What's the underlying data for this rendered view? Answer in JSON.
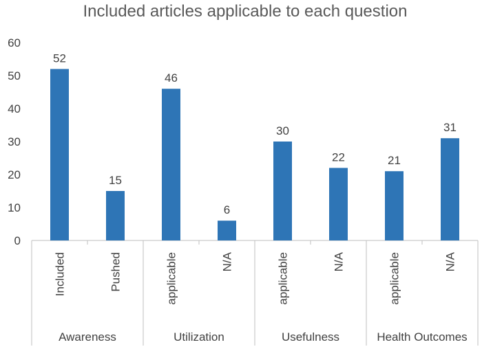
{
  "chart_data": {
    "type": "bar",
    "title": "Included articles applicable to each question",
    "xlabel": "",
    "ylabel": "",
    "ylim": [
      0,
      60
    ],
    "yticks": [
      0,
      10,
      20,
      30,
      40,
      50,
      60
    ],
    "grid": false,
    "legend": "none",
    "bar_color": "#2E75B6",
    "groups": [
      {
        "name": "Awareness",
        "categories": [
          "Included",
          "Pushed"
        ]
      },
      {
        "name": "Utilization",
        "categories": [
          "applicable",
          "N/A"
        ]
      },
      {
        "name": "Usefulness",
        "categories": [
          "applicable",
          "N/A"
        ]
      },
      {
        "name": "Health Outcomes",
        "categories": [
          "applicable",
          "N/A"
        ]
      }
    ],
    "categories": [
      "Included",
      "Pushed",
      "applicable",
      "N/A",
      "applicable",
      "N/A",
      "applicable",
      "N/A"
    ],
    "values": [
      52,
      15,
      46,
      6,
      30,
      22,
      21,
      31
    ]
  }
}
